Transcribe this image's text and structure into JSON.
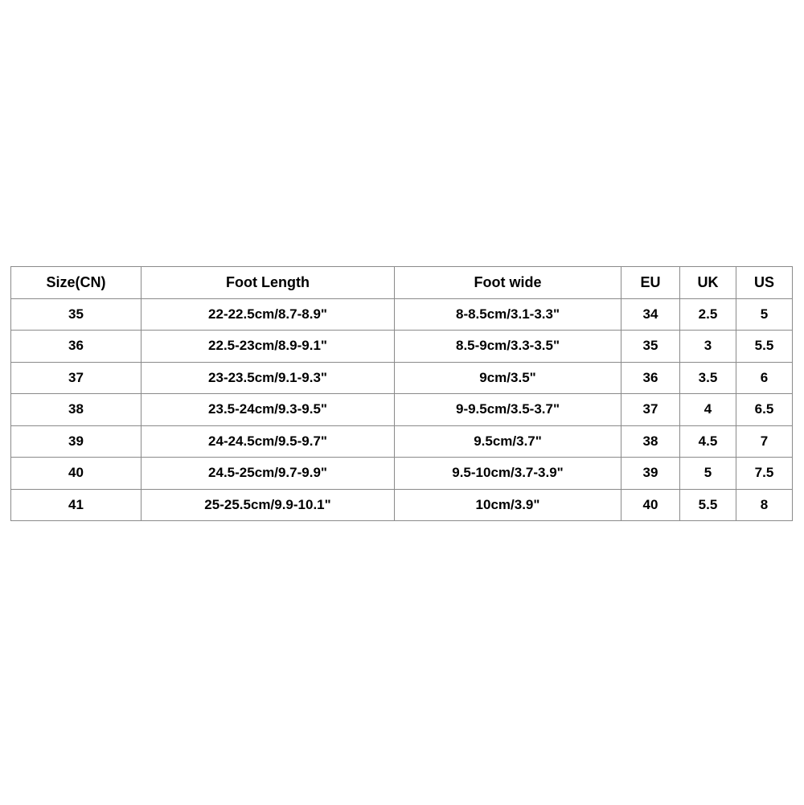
{
  "table": {
    "title": "shoe-size-chart",
    "border_color": "#8a8a8a",
    "text_color": "#000000",
    "headers": [
      "Size(CN)",
      "Foot Length",
      "Foot wide",
      "EU",
      "UK",
      "US"
    ],
    "rows": [
      [
        "35",
        "22-22.5cm/8.7-8.9\"",
        "8-8.5cm/3.1-3.3\"",
        "34",
        "2.5",
        "5"
      ],
      [
        "36",
        "22.5-23cm/8.9-9.1\"",
        "8.5-9cm/3.3-3.5\"",
        "35",
        "3",
        "5.5"
      ],
      [
        "37",
        "23-23.5cm/9.1-9.3\"",
        "9cm/3.5\"",
        "36",
        "3.5",
        "6"
      ],
      [
        "38",
        "23.5-24cm/9.3-9.5\"",
        "9-9.5cm/3.5-3.7\"",
        "37",
        "4",
        "6.5"
      ],
      [
        "39",
        "24-24.5cm/9.5-9.7\"",
        "9.5cm/3.7\"",
        "38",
        "4.5",
        "7"
      ],
      [
        "40",
        "24.5-25cm/9.7-9.9\"",
        "9.5-10cm/3.7-3.9\"",
        "39",
        "5",
        "7.5"
      ],
      [
        "41",
        "25-25.5cm/9.9-10.1\"",
        "10cm/3.9\"",
        "40",
        "5.5",
        "8"
      ]
    ]
  }
}
